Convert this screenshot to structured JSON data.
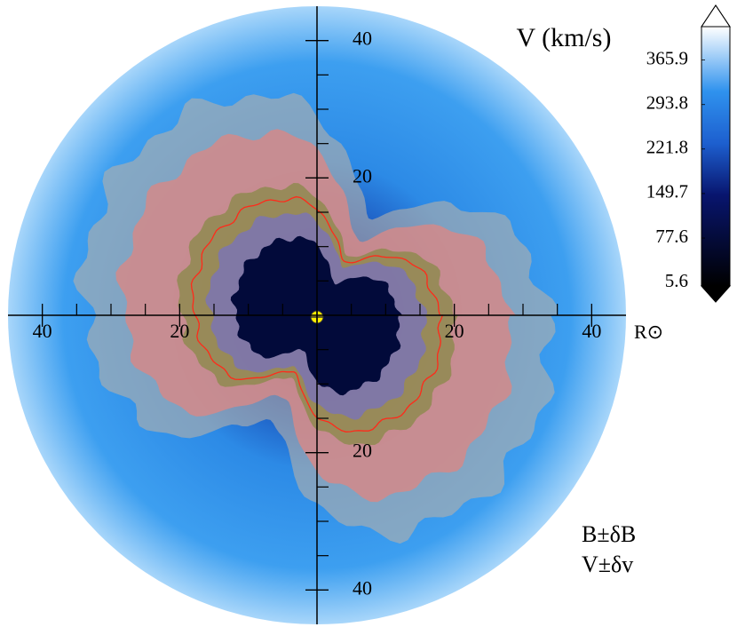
{
  "chart_data": {
    "type": "polar-map",
    "title": "V (km/s)",
    "x_label": "R⊙",
    "xlim": [
      -45,
      45
    ],
    "ylim": [
      -45,
      45
    ],
    "xticks": [
      {
        "value": -40,
        "label": "40"
      },
      {
        "value": -20,
        "label": "20"
      },
      20,
      40
    ],
    "yticks": [
      {
        "value": -40,
        "label": "40"
      },
      {
        "value": -20,
        "label": "20"
      },
      20,
      40
    ],
    "xminorticks": [
      -35,
      -30,
      -25,
      -15,
      -10,
      -5,
      5,
      10,
      15,
      25,
      30,
      35
    ],
    "yminorticks": [
      -35,
      -30,
      -25,
      -15,
      -10,
      -5,
      5,
      10,
      15,
      25,
      30,
      35
    ],
    "colorbar": {
      "lim": [
        0,
        420
      ],
      "ticks": [
        5.6,
        77.6,
        149.7,
        221.8,
        293.8,
        365.9
      ]
    },
    "legend": [
      {
        "name": "B±δB",
        "color": "#e8281e"
      },
      {
        "name": "V±δv",
        "color": "#1f8a1f"
      }
    ]
  }
}
